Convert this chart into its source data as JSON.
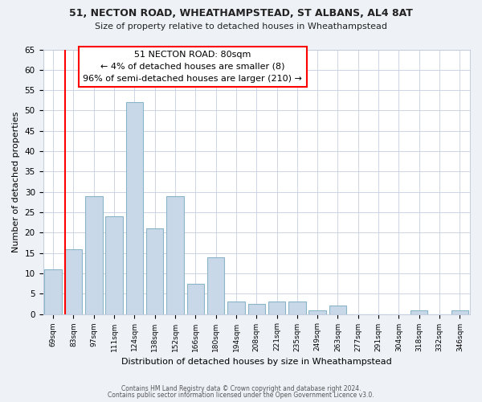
{
  "title": "51, NECTON ROAD, WHEATHAMPSTEAD, ST ALBANS, AL4 8AT",
  "subtitle": "Size of property relative to detached houses in Wheathampstead",
  "xlabel": "Distribution of detached houses by size in Wheathampstead",
  "ylabel": "Number of detached properties",
  "bar_labels": [
    "69sqm",
    "83sqm",
    "97sqm",
    "111sqm",
    "124sqm",
    "138sqm",
    "152sqm",
    "166sqm",
    "180sqm",
    "194sqm",
    "208sqm",
    "221sqm",
    "235sqm",
    "249sqm",
    "263sqm",
    "277sqm",
    "291sqm",
    "304sqm",
    "318sqm",
    "332sqm",
    "346sqm"
  ],
  "bar_values": [
    11,
    16,
    29,
    24,
    52,
    21,
    29,
    7.5,
    14,
    3,
    2.5,
    3,
    3,
    1,
    2,
    0,
    0,
    0,
    1,
    0,
    1
  ],
  "bar_color": "#c8d8e8",
  "bar_edge_color": "#8ab4c8",
  "annotation_title": "51 NECTON ROAD: 80sqm",
  "annotation_line1": "← 4% of detached houses are smaller (8)",
  "annotation_line2": "96% of semi-detached houses are larger (210) →",
  "annotation_box_color": "white",
  "annotation_box_edge_color": "red",
  "vline_color": "red",
  "vline_x_index": 0,
  "ylim": [
    0,
    65
  ],
  "yticks": [
    0,
    5,
    10,
    15,
    20,
    25,
    30,
    35,
    40,
    45,
    50,
    55,
    60,
    65
  ],
  "footer_line1": "Contains HM Land Registry data © Crown copyright and database right 2024.",
  "footer_line2": "Contains public sector information licensed under the Open Government Licence v3.0.",
  "background_color": "#eef2f7",
  "plot_background_color": "white",
  "grid_color": "#c5cfe0"
}
